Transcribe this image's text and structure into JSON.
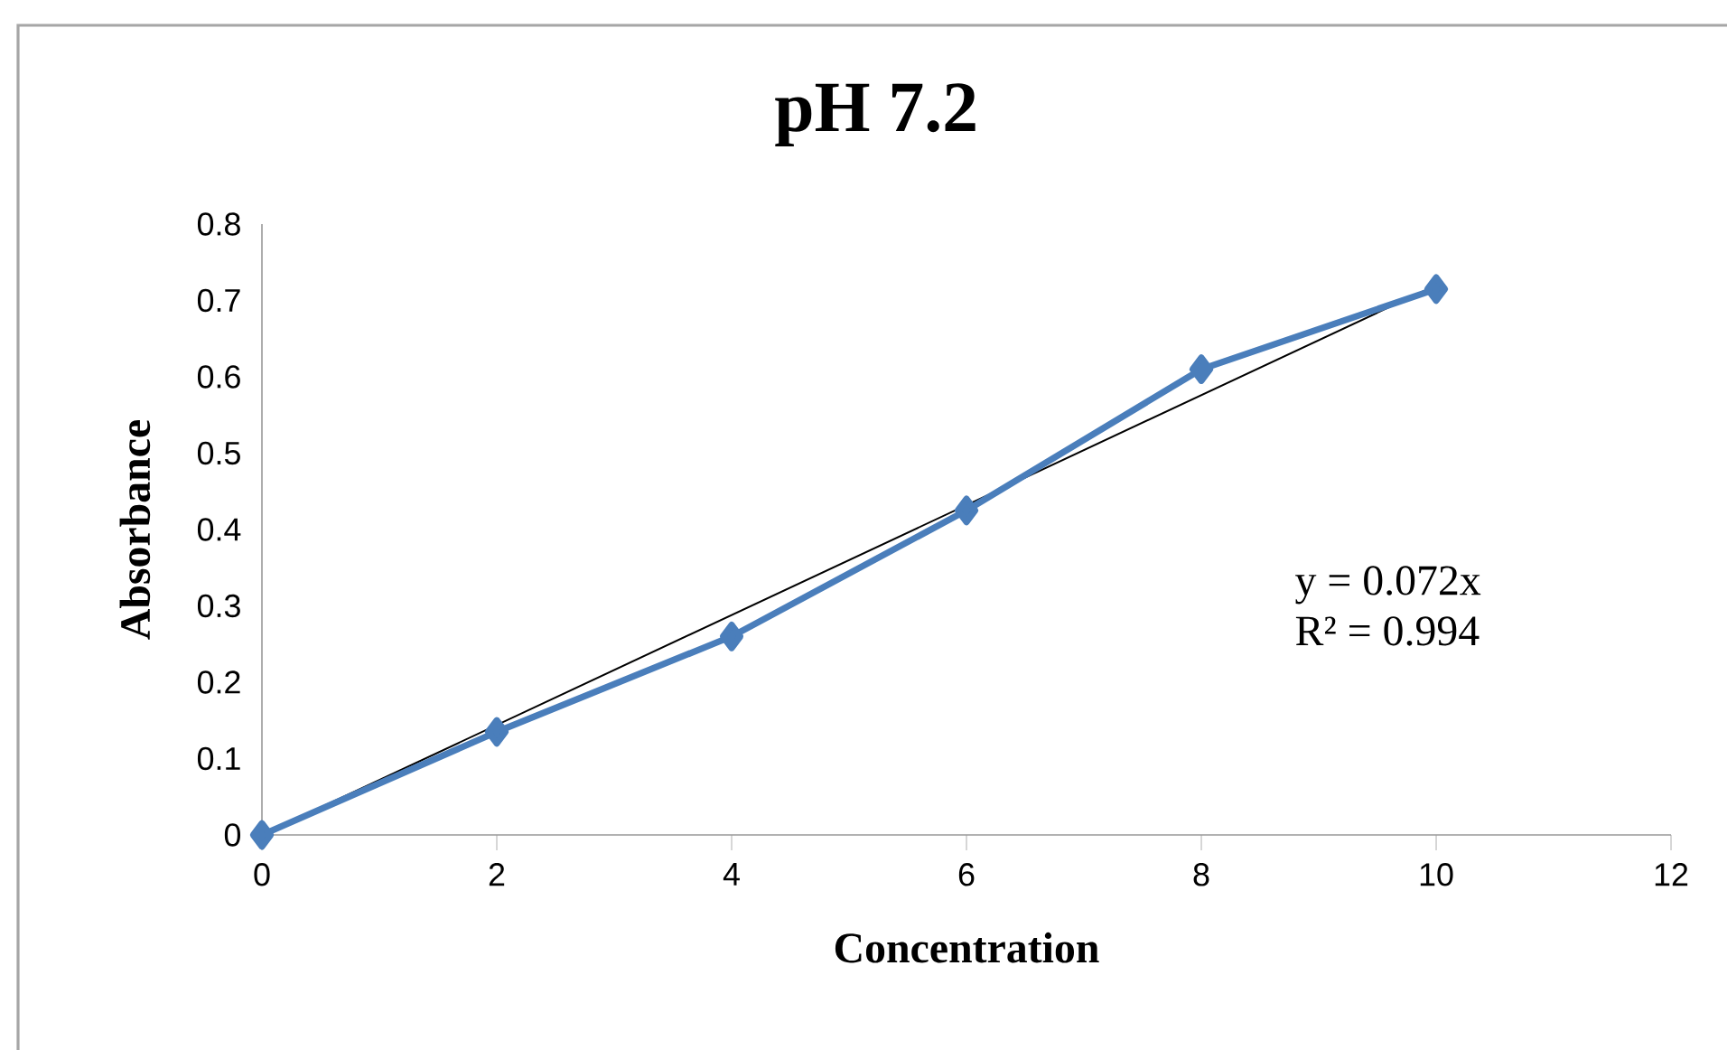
{
  "chart_data": {
    "type": "line",
    "title": "pH 7.2",
    "xlabel": "Concentration",
    "ylabel": "Absorbance",
    "xlim": [
      0,
      12
    ],
    "ylim": [
      0,
      0.8
    ],
    "xticks": [
      0,
      2,
      4,
      6,
      8,
      10,
      12
    ],
    "yticks": [
      0,
      0.1,
      0.2,
      0.3,
      0.4,
      0.5,
      0.6,
      0.7,
      0.8
    ],
    "grid": false,
    "annotations": [
      "y = 0.072x",
      "R² = 0.994"
    ],
    "series": [
      {
        "x": [
          0,
          2,
          4,
          6,
          8,
          10
        ],
        "values": [
          0,
          0.135,
          0.26,
          0.425,
          0.61,
          0.715
        ],
        "color": "#4a7ebb",
        "marker": "diamond",
        "line_style": "solid"
      },
      {
        "type": "line",
        "x": [
          0,
          10
        ],
        "values": [
          0,
          0.72
        ],
        "color": "#000000",
        "marker": "none",
        "line_style": "solid"
      }
    ]
  }
}
